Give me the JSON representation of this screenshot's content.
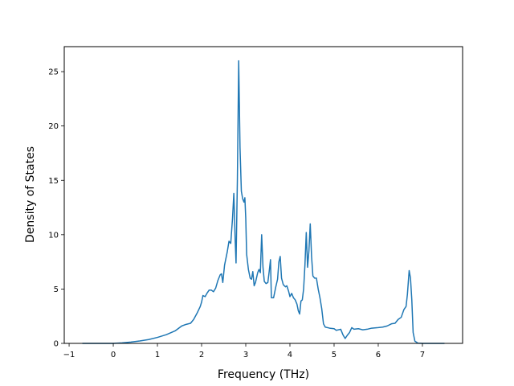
{
  "chart_data": {
    "type": "line",
    "title": "",
    "xlabel": "Frequency (THz)",
    "ylabel": "Density of States",
    "xlim": [
      -1.11,
      7.91
    ],
    "ylim": [
      0,
      27.3
    ],
    "x_ticks": [
      -1,
      0,
      1,
      2,
      3,
      4,
      5,
      6,
      7
    ],
    "y_ticks": [
      0,
      5,
      10,
      15,
      20,
      25
    ],
    "grid": false,
    "legend": "none",
    "series": [
      {
        "color": "#1f77b4",
        "points": [
          [
            -0.7,
            0.0
          ],
          [
            -0.3,
            0.0
          ],
          [
            0.0,
            0.0
          ],
          [
            0.2,
            0.05
          ],
          [
            0.4,
            0.12
          ],
          [
            0.6,
            0.22
          ],
          [
            0.8,
            0.35
          ],
          [
            1.0,
            0.55
          ],
          [
            1.2,
            0.8
          ],
          [
            1.4,
            1.15
          ],
          [
            1.55,
            1.6
          ],
          [
            1.65,
            1.75
          ],
          [
            1.75,
            1.85
          ],
          [
            1.82,
            2.2
          ],
          [
            1.9,
            2.8
          ],
          [
            1.97,
            3.4
          ],
          [
            2.0,
            3.8
          ],
          [
            2.03,
            4.4
          ],
          [
            2.08,
            4.3
          ],
          [
            2.12,
            4.6
          ],
          [
            2.17,
            4.9
          ],
          [
            2.22,
            4.9
          ],
          [
            2.27,
            4.75
          ],
          [
            2.32,
            5.1
          ],
          [
            2.37,
            5.8
          ],
          [
            2.42,
            6.3
          ],
          [
            2.45,
            6.4
          ],
          [
            2.48,
            5.6
          ],
          [
            2.52,
            7.2
          ],
          [
            2.58,
            8.4
          ],
          [
            2.62,
            9.4
          ],
          [
            2.66,
            9.2
          ],
          [
            2.7,
            11.5
          ],
          [
            2.73,
            13.8
          ],
          [
            2.76,
            9.5
          ],
          [
            2.78,
            7.4
          ],
          [
            2.81,
            15.0
          ],
          [
            2.84,
            26.0
          ],
          [
            2.87,
            18.0
          ],
          [
            2.9,
            14.0
          ],
          [
            2.93,
            13.3
          ],
          [
            2.96,
            13.0
          ],
          [
            2.98,
            13.4
          ],
          [
            3.0,
            11.5
          ],
          [
            3.02,
            8.2
          ],
          [
            3.06,
            6.8
          ],
          [
            3.1,
            6.0
          ],
          [
            3.13,
            5.9
          ],
          [
            3.16,
            6.6
          ],
          [
            3.19,
            5.3
          ],
          [
            3.22,
            5.6
          ],
          [
            3.27,
            6.5
          ],
          [
            3.3,
            6.8
          ],
          [
            3.33,
            6.5
          ],
          [
            3.36,
            10.0
          ],
          [
            3.39,
            7.0
          ],
          [
            3.42,
            5.7
          ],
          [
            3.46,
            5.5
          ],
          [
            3.5,
            5.6
          ],
          [
            3.53,
            6.6
          ],
          [
            3.56,
            7.7
          ],
          [
            3.58,
            4.2
          ],
          [
            3.63,
            4.2
          ],
          [
            3.68,
            5.2
          ],
          [
            3.72,
            5.9
          ],
          [
            3.75,
            7.5
          ],
          [
            3.78,
            8.0
          ],
          [
            3.81,
            6.0
          ],
          [
            3.85,
            5.4
          ],
          [
            3.9,
            5.2
          ],
          [
            3.93,
            5.3
          ],
          [
            3.97,
            4.8
          ],
          [
            4.0,
            4.3
          ],
          [
            4.04,
            4.6
          ],
          [
            4.08,
            4.2
          ],
          [
            4.12,
            4.0
          ],
          [
            4.16,
            3.6
          ],
          [
            4.19,
            3.0
          ],
          [
            4.22,
            2.7
          ],
          [
            4.25,
            3.9
          ],
          [
            4.28,
            4.0
          ],
          [
            4.31,
            5.0
          ],
          [
            4.34,
            7.2
          ],
          [
            4.37,
            10.2
          ],
          [
            4.4,
            7.0
          ],
          [
            4.43,
            8.5
          ],
          [
            4.46,
            11.0
          ],
          [
            4.49,
            8.0
          ],
          [
            4.52,
            6.2
          ],
          [
            4.56,
            6.0
          ],
          [
            4.6,
            6.0
          ],
          [
            4.64,
            5.0
          ],
          [
            4.68,
            4.2
          ],
          [
            4.72,
            3.2
          ],
          [
            4.76,
            1.8
          ],
          [
            4.8,
            1.5
          ],
          [
            4.9,
            1.4
          ],
          [
            5.0,
            1.35
          ],
          [
            5.05,
            1.2
          ],
          [
            5.15,
            1.3
          ],
          [
            5.2,
            0.8
          ],
          [
            5.25,
            0.45
          ],
          [
            5.3,
            0.75
          ],
          [
            5.35,
            1.0
          ],
          [
            5.4,
            1.45
          ],
          [
            5.45,
            1.3
          ],
          [
            5.55,
            1.35
          ],
          [
            5.65,
            1.25
          ],
          [
            5.75,
            1.3
          ],
          [
            5.85,
            1.4
          ],
          [
            6.0,
            1.45
          ],
          [
            6.1,
            1.5
          ],
          [
            6.2,
            1.6
          ],
          [
            6.3,
            1.8
          ],
          [
            6.38,
            1.85
          ],
          [
            6.45,
            2.2
          ],
          [
            6.52,
            2.4
          ],
          [
            6.58,
            3.1
          ],
          [
            6.63,
            3.4
          ],
          [
            6.66,
            4.5
          ],
          [
            6.7,
            6.7
          ],
          [
            6.73,
            6.0
          ],
          [
            6.76,
            4.0
          ],
          [
            6.79,
            1.0
          ],
          [
            6.83,
            0.2
          ],
          [
            6.9,
            0.02
          ],
          [
            7.0,
            0.0
          ],
          [
            7.5,
            0.0
          ]
        ]
      }
    ]
  }
}
